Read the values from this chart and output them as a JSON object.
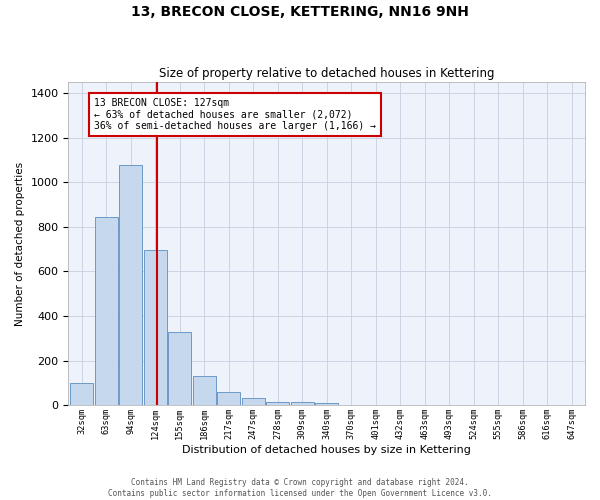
{
  "title": "13, BRECON CLOSE, KETTERING, NN16 9NH",
  "subtitle": "Size of property relative to detached houses in Kettering",
  "xlabel": "Distribution of detached houses by size in Kettering",
  "ylabel": "Number of detached properties",
  "footer_line1": "Contains HM Land Registry data © Crown copyright and database right 2024.",
  "footer_line2": "Contains public sector information licensed under the Open Government Licence v3.0.",
  "bar_color": "#c5d8ed",
  "bar_edge_color": "#5b8dc0",
  "grid_color": "#c8cfe0",
  "bg_color": "#eef2fa",
  "red_line_color": "#cc0000",
  "annotation_line1": "13 BRECON CLOSE: 127sqm",
  "annotation_line2": "← 63% of detached houses are smaller (2,072)",
  "annotation_line3": "36% of semi-detached houses are larger (1,166) →",
  "annotation_box_color": "#cc0000",
  "property_sqm": 127,
  "categories": [
    "32sqm",
    "63sqm",
    "94sqm",
    "124sqm",
    "155sqm",
    "186sqm",
    "217sqm",
    "247sqm",
    "278sqm",
    "309sqm",
    "340sqm",
    "370sqm",
    "401sqm",
    "432sqm",
    "463sqm",
    "493sqm",
    "524sqm",
    "555sqm",
    "586sqm",
    "616sqm",
    "647sqm"
  ],
  "bin_width": 31,
  "values": [
    100,
    845,
    1080,
    695,
    330,
    130,
    60,
    30,
    15,
    15,
    10,
    0,
    0,
    0,
    0,
    0,
    0,
    0,
    0,
    0,
    0
  ],
  "ylim": [
    0,
    1450
  ],
  "yticks": [
    0,
    200,
    400,
    600,
    800,
    1000,
    1200,
    1400
  ],
  "title_fontsize": 10,
  "subtitle_fontsize": 8.5
}
